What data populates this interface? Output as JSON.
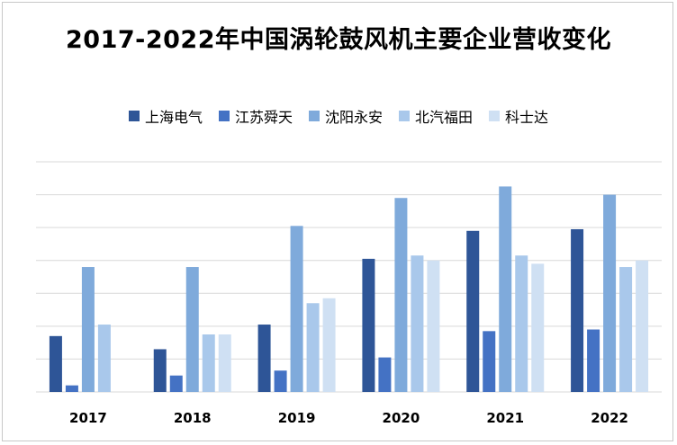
{
  "title": "2017-2022年中国涡轮鼓风机主要企业营收变化",
  "chart_data": {
    "type": "bar",
    "categories": [
      "2017",
      "2018",
      "2019",
      "2020",
      "2021",
      "2022"
    ],
    "series": [
      {
        "name": "上海电气",
        "color": "#2e5597",
        "values": [
          17,
          13,
          20.5,
          40.5,
          49,
          49.5
        ]
      },
      {
        "name": "江苏舜天",
        "color": "#4472c4",
        "values": [
          2,
          5,
          6.5,
          10.5,
          18.5,
          19
        ]
      },
      {
        "name": "沈阳永安",
        "color": "#7faadb",
        "values": [
          38,
          38,
          50.5,
          59,
          62.5,
          60
        ]
      },
      {
        "name": "北汽福田",
        "color": "#a9c8eb",
        "values": [
          20.5,
          17.5,
          27,
          41.5,
          41.5,
          38
        ]
      },
      {
        "name": "科士达",
        "color": "#cfe0f3",
        "values": [
          null,
          17.5,
          28.5,
          40,
          39,
          40
        ]
      }
    ],
    "ylim": [
      0,
      70
    ],
    "grid": true,
    "legend_position": "top"
  }
}
